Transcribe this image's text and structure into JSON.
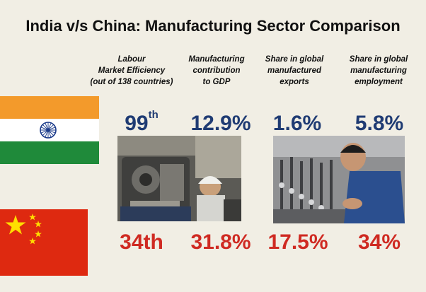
{
  "title": "India v/s China: Manufacturing Sector Comparison",
  "headers": [
    {
      "lines": [
        "Labour",
        "Market Efficiency",
        "(out of 138 countries)"
      ]
    },
    {
      "lines": [
        "Manufacturing",
        "contribution",
        "to GDP"
      ]
    },
    {
      "lines": [
        "Share in global",
        "manufactured",
        "exports"
      ]
    },
    {
      "lines": [
        "Share in global",
        "manufacturing",
        "employment"
      ]
    }
  ],
  "india": {
    "rank_number": "99",
    "rank_suffix": "th",
    "gdp": "12.9%",
    "exports": "1.6%",
    "employment": "5.8%"
  },
  "china": {
    "rank": "34th",
    "gdp": "31.8%",
    "exports": "17.5%",
    "employment": "34%"
  },
  "colors": {
    "india_value": "#1f3b73",
    "china_value": "#cf2a22",
    "saffron": "#f39a2b",
    "green": "#1f8a3a",
    "china_red": "#de2910",
    "china_star": "#ffde00"
  }
}
